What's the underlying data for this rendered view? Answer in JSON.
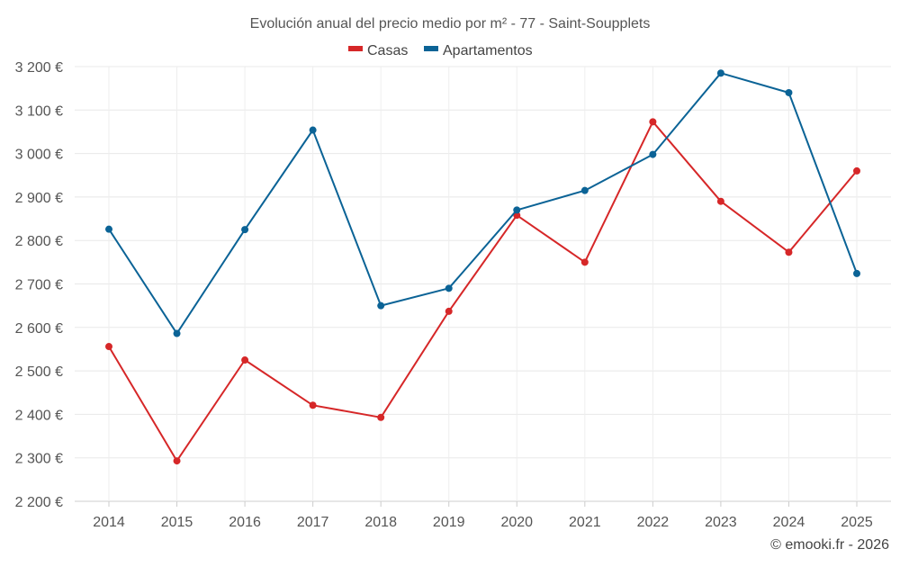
{
  "chart_data": {
    "type": "line",
    "title": "Evolución anual del precio medio por m² - 77 - Saint-Soupplets",
    "xlabel": "",
    "ylabel": "",
    "categories": [
      "2014",
      "2015",
      "2016",
      "2017",
      "2018",
      "2019",
      "2020",
      "2021",
      "2022",
      "2023",
      "2024",
      "2025"
    ],
    "ylim": [
      2200,
      3200
    ],
    "yticks": [
      2200,
      2300,
      2400,
      2500,
      2600,
      2700,
      2800,
      2900,
      3000,
      3100,
      3200
    ],
    "ytick_labels": [
      "2 200 €",
      "2 300 €",
      "2 400 €",
      "2 500 €",
      "2 600 €",
      "2 700 €",
      "2 800 €",
      "2 900 €",
      "3 000 €",
      "3 100 €",
      "3 200 €"
    ],
    "grid": true,
    "legend_position": "top-center",
    "series": [
      {
        "name": "Casas",
        "color": "#d62728",
        "values": [
          2556,
          2293,
          2525,
          2421,
          2393,
          2637,
          2858,
          2750,
          3073,
          2890,
          2773,
          2960
        ]
      },
      {
        "name": "Apartamentos",
        "color": "#0b6396",
        "values": [
          2826,
          2586,
          2825,
          3054,
          2650,
          2690,
          2870,
          2915,
          2998,
          3185,
          3140,
          2724
        ]
      }
    ],
    "credit": "© emooki.fr - 2026"
  }
}
